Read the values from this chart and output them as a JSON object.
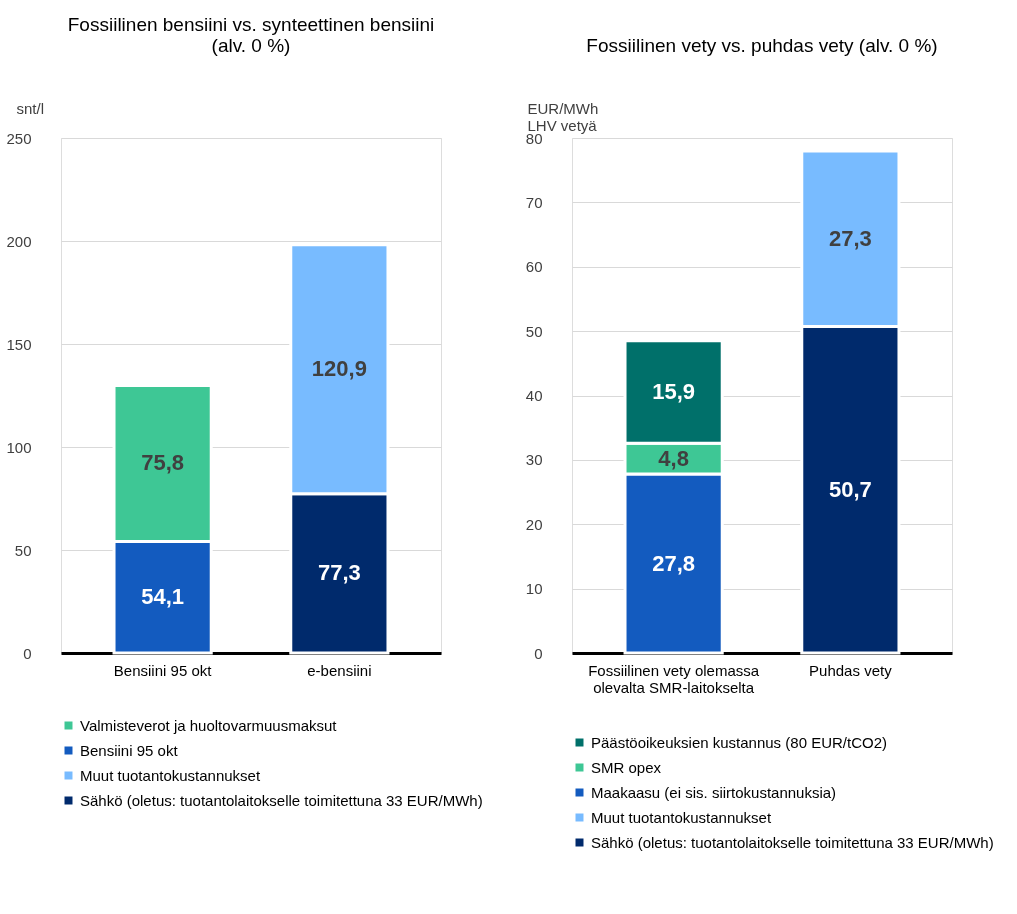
{
  "chart_data": [
    {
      "type": "bar",
      "title": "Fossiilinen bensiini vs. synteettinen bensiini\n(alv. 0 %)",
      "ylabel": "snt/l",
      "categories": [
        "Bensiini 95 okt",
        "e-bensiini"
      ],
      "stacked": true,
      "ylim": [
        0,
        250
      ],
      "yticks": [
        0,
        50,
        100,
        150,
        200,
        250
      ],
      "grid": "y",
      "legend": "bottom",
      "series": [
        {
          "name": "Sähkö (oletus: tuotantolaitokselle toimitettuna 33 EUR/MWh)",
          "color": "#002a6c",
          "values": [
            null,
            77.3
          ],
          "value_labels": [
            null,
            "77,3"
          ]
        },
        {
          "name": "Muut tuotantokustannukset",
          "color": "#78bbff",
          "values": [
            null,
            120.9
          ],
          "value_labels": [
            null,
            "120,9"
          ]
        },
        {
          "name": "Bensiini 95 okt",
          "color": "#135bbf",
          "values": [
            54.1,
            null
          ],
          "value_labels": [
            "54,1",
            null
          ]
        },
        {
          "name": "Valmisteverot ja huoltovarmuusmaksut",
          "color": "#3ec795",
          "values": [
            75.8,
            null
          ],
          "value_labels": [
            "75,8",
            null
          ]
        }
      ]
    },
    {
      "type": "bar",
      "title": "Fossiilinen vety vs. puhdas vety (alv. 0 %)",
      "ylabel": "EUR/MWh\nLHV vetyä",
      "categories": [
        "Fossiilinen vety olemassa\nolevalta SMR-laitokselta",
        "Puhdas vety"
      ],
      "stacked": true,
      "ylim": [
        0,
        80
      ],
      "yticks": [
        0,
        10,
        20,
        30,
        40,
        50,
        60,
        70,
        80
      ],
      "grid": "y",
      "legend": "bottom",
      "series": [
        {
          "name": "Sähkö (oletus: tuotantolaitokselle toimitettuna 33 EUR/MWh)",
          "color": "#002a6c",
          "values": [
            null,
            50.7
          ],
          "value_labels": [
            null,
            "50,7"
          ]
        },
        {
          "name": "Muut tuotantokustannukset",
          "color": "#78bbff",
          "values": [
            null,
            27.3
          ],
          "value_labels": [
            null,
            "27,3"
          ]
        },
        {
          "name": "Maakaasu (ei sis. siirtokustannuksia)",
          "color": "#135bbf",
          "values": [
            27.8,
            null
          ],
          "value_labels": [
            "27,8",
            null
          ]
        },
        {
          "name": "SMR opex",
          "color": "#3ec795",
          "values": [
            4.8,
            null
          ],
          "value_labels": [
            "4,8",
            null
          ]
        },
        {
          "name": "Päästöoikeuksien kustannus (80 EUR/tCO2)",
          "color": "#00706a",
          "values": [
            15.9,
            null
          ],
          "value_labels": [
            "15,9",
            null
          ]
        }
      ]
    }
  ]
}
